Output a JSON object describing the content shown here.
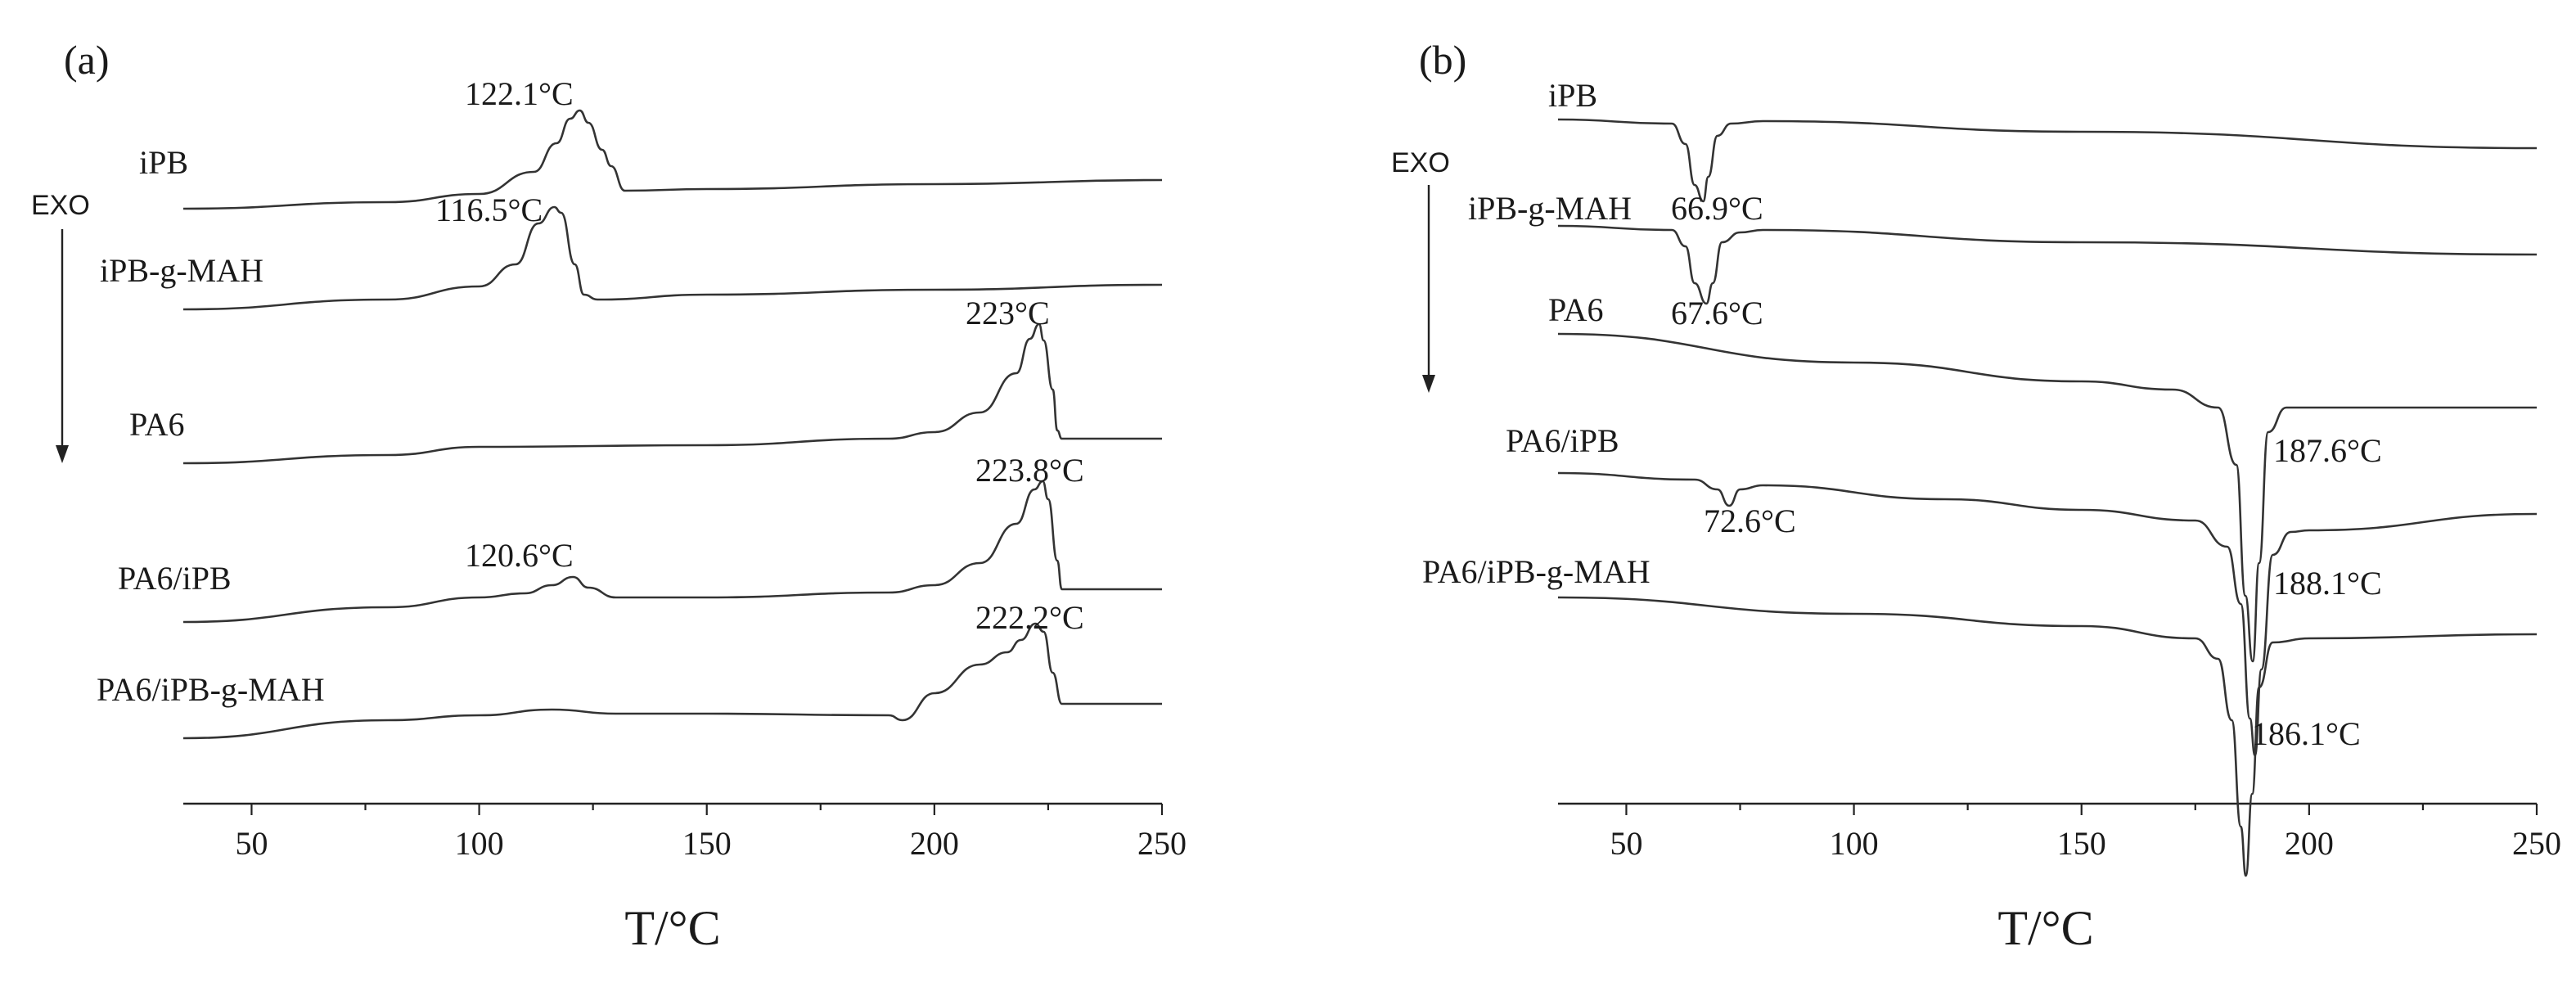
{
  "chart_data": [
    {
      "panel": "(a)",
      "type": "line",
      "xlabel": "T/°C",
      "xlim": [
        35,
        250
      ],
      "xticks": [
        50,
        100,
        150,
        200,
        250
      ],
      "indicator": "EXO",
      "series": [
        {
          "name": "iPB",
          "x": [
            35,
            80,
            100,
            112,
            117,
            120,
            122.1,
            124,
            127,
            129,
            132,
            150,
            200,
            250
          ],
          "y": [
            0,
            0.08,
            0.18,
            0.45,
            0.8,
            1.1,
            1.2,
            1.05,
            0.72,
            0.52,
            0.22,
            0.24,
            0.3,
            0.35
          ]
        },
        {
          "name": "iPB-g-MAH",
          "x": [
            35,
            80,
            100,
            108,
            113,
            116.5,
            118,
            121,
            123,
            126,
            150,
            200,
            250
          ],
          "y": [
            0,
            0.12,
            0.28,
            0.55,
            1.05,
            1.25,
            1.18,
            0.55,
            0.18,
            0.12,
            0.18,
            0.24,
            0.3
          ]
        },
        {
          "name": "PA6",
          "x": [
            35,
            80,
            100,
            150,
            190,
            200,
            210,
            218,
            221,
            223,
            224,
            226,
            227,
            228,
            250
          ],
          "y": [
            0,
            0.1,
            0.2,
            0.22,
            0.3,
            0.38,
            0.62,
            1.1,
            1.52,
            1.7,
            1.5,
            0.9,
            0.4,
            0.3,
            0.3
          ]
        },
        {
          "name": "PA6/iPB",
          "x": [
            35,
            80,
            100,
            110,
            116,
            120.6,
            124,
            130,
            150,
            190,
            200,
            210,
            218,
            222,
            223.8,
            225,
            227,
            228,
            250
          ],
          "y": [
            0,
            0.18,
            0.3,
            0.35,
            0.45,
            0.55,
            0.42,
            0.3,
            0.3,
            0.36,
            0.45,
            0.72,
            1.2,
            1.62,
            1.72,
            1.5,
            0.75,
            0.4,
            0.4
          ]
        },
        {
          "name": "PA6/iPB-g-MAH",
          "x": [
            35,
            80,
            100,
            116,
            130,
            150,
            190,
            193,
            200,
            210,
            216,
            219,
            222.2,
            224,
            226,
            228,
            250
          ],
          "y": [
            0,
            0.22,
            0.28,
            0.35,
            0.3,
            0.3,
            0.28,
            0.22,
            0.55,
            0.9,
            1.05,
            1.2,
            1.4,
            1.3,
            0.8,
            0.42,
            0.42
          ]
        }
      ],
      "annotations": [
        "122.1°C",
        "116.5°C",
        "223°C",
        "223.8°C",
        "120.6°C",
        "222.2°C"
      ]
    },
    {
      "panel": "(b)",
      "type": "line",
      "xlabel": "T/°C",
      "xlim": [
        35,
        250
      ],
      "xticks": [
        50,
        100,
        150,
        200,
        250
      ],
      "indicator": "EXO",
      "series": [
        {
          "name": "iPB",
          "x": [
            35,
            60,
            63,
            65,
            66.9,
            68,
            70,
            73,
            80,
            150,
            250
          ],
          "y": [
            0,
            -0.05,
            -0.3,
            -0.8,
            -1.0,
            -0.7,
            -0.2,
            -0.05,
            -0.02,
            -0.15,
            -0.35
          ]
        },
        {
          "name": "iPB-g-MAH",
          "x": [
            35,
            60,
            63,
            65,
            67.6,
            69,
            71,
            75,
            80,
            150,
            250
          ],
          "y": [
            0,
            -0.05,
            -0.25,
            -0.7,
            -0.95,
            -0.7,
            -0.2,
            -0.08,
            -0.05,
            -0.2,
            -0.35
          ]
        },
        {
          "name": "PA6",
          "x": [
            35,
            100,
            150,
            170,
            180,
            184,
            186,
            187.6,
            189,
            191,
            195,
            200,
            250
          ],
          "y": [
            0,
            -0.35,
            -0.58,
            -0.68,
            -0.9,
            -1.6,
            -3.2,
            -4.0,
            -2.8,
            -1.2,
            -0.9,
            -0.9,
            -0.9
          ]
        },
        {
          "name": "PA6/iPB",
          "x": [
            35,
            65,
            70,
            72.6,
            75,
            80,
            120,
            150,
            175,
            182,
            185,
            187,
            188.1,
            189.5,
            192,
            196,
            200,
            250
          ],
          "y": [
            0,
            -0.08,
            -0.2,
            -0.4,
            -0.2,
            -0.15,
            -0.32,
            -0.45,
            -0.58,
            -0.9,
            -1.6,
            -3.0,
            -3.45,
            -2.4,
            -1.0,
            -0.72,
            -0.7,
            -0.5
          ]
        },
        {
          "name": "PA6/iPB-g-MAH",
          "x": [
            35,
            100,
            150,
            175,
            180,
            183,
            185,
            186.1,
            187.5,
            189,
            192,
            200,
            250
          ],
          "y": [
            0,
            -0.2,
            -0.35,
            -0.5,
            -0.75,
            -1.5,
            -2.8,
            -3.4,
            -2.4,
            -1.1,
            -0.55,
            -0.5,
            -0.45
          ]
        }
      ],
      "annotations": [
        "66.9°C",
        "67.6°C",
        "187.6°C",
        "72.6°C",
        "188.1°C",
        "186.1°C"
      ]
    }
  ]
}
